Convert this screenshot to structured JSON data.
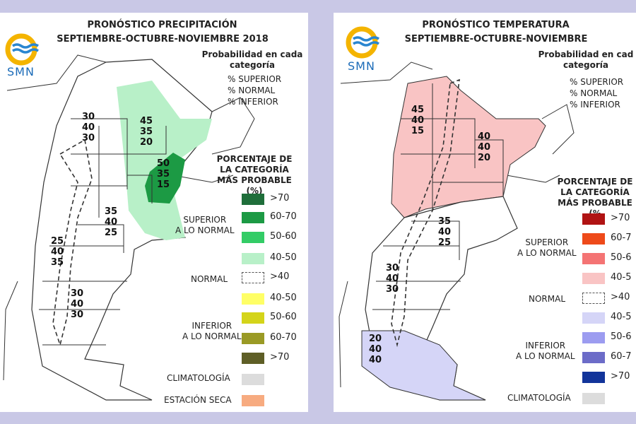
{
  "left_panel": {
    "logo_text": "SMN",
    "title": "PRONÓSTICO PRECIPITACIÓN",
    "subtitle": "SEPTIEMBRE-OCTUBRE-NOVIEMBRE 2018",
    "prob_heading": [
      "Probabilidad en cada",
      "categoría"
    ],
    "prob_items": [
      "% SUPERIOR",
      "% NORMAL",
      "% INFERIOR"
    ],
    "pct_heading": [
      "PORCENTAJE DE",
      "LA CATEGORÍA",
      "MÁS PROBABLE (%)"
    ],
    "group_superior": [
      "SUPERIOR",
      "A LO NORMAL"
    ],
    "group_normal": "NORMAL",
    "group_inferior": [
      "INFERIOR",
      "A LO NORMAL"
    ],
    "climatologia": "CLIMATOLOGÍA",
    "estacion_seca": "ESTACIÓN SECA",
    "legend": [
      {
        "label": ">70",
        "color": "#1f6e3a"
      },
      {
        "label": "60-70",
        "color": "#1c9a44"
      },
      {
        "label": "50-60",
        "color": "#33cc66"
      },
      {
        "label": "40-50",
        "color": "#b8f0c8"
      },
      {
        "label": ">40",
        "color": "dashed"
      },
      {
        "label": "40-50",
        "color": "#ffff66"
      },
      {
        "label": "50-60",
        "color": "#d4d41a"
      },
      {
        "label": "60-70",
        "color": "#9a9a25"
      },
      {
        "label": ">70",
        "color": "#5e5e26"
      },
      {
        "label": "",
        "color": "#dcdcdc"
      },
      {
        "label": "",
        "color": "#f7ab80"
      }
    ],
    "map_labels": [
      {
        "values": [
          "30",
          "40",
          "30"
        ]
      },
      {
        "values": [
          "45",
          "35",
          "20"
        ]
      },
      {
        "values": [
          "50",
          "35",
          "15"
        ]
      },
      {
        "values": [
          "35",
          "40",
          "25"
        ]
      },
      {
        "values": [
          "25",
          "40",
          "35"
        ]
      },
      {
        "values": [
          "30",
          "40",
          "30"
        ]
      }
    ]
  },
  "right_panel": {
    "logo_text": "SMN",
    "title": "PRONÓSTICO TEMPERATURA",
    "subtitle": "SEPTIEMBRE-OCTUBRE-NOVIEMBRE",
    "prob_heading": [
      "Probabilidad en cad",
      "categoría"
    ],
    "prob_items": [
      "% SUPERIOR",
      "% NORMAL",
      "% INFERIOR"
    ],
    "pct_heading": [
      "PORCENTAJE DE",
      "LA CATEGORÍA",
      "MÁS PROBABLE (%"
    ],
    "group_superior": [
      "SUPERIOR",
      "A LO NORMAL"
    ],
    "group_normal": "NORMAL",
    "group_inferior": [
      "INFERIOR",
      "A LO NORMAL"
    ],
    "climatologia": "CLIMATOLOGÍA",
    "legend": [
      {
        "label": ">70",
        "color": "#b01313"
      },
      {
        "label": "60-7",
        "color": "#ee4a1a"
      },
      {
        "label": "50-6",
        "color": "#f47474"
      },
      {
        "label": "40-5",
        "color": "#f9c4c4"
      },
      {
        "label": ">40",
        "color": "dashed"
      },
      {
        "label": "40-5",
        "color": "#d5d5f7"
      },
      {
        "label": "50-6",
        "color": "#9c9cf0"
      },
      {
        "label": "60-7",
        "color": "#6c6cc8"
      },
      {
        "label": ">70",
        "color": "#12349a"
      },
      {
        "label": "",
        "color": "#dcdcdc"
      }
    ],
    "map_labels": [
      {
        "values": [
          "45",
          "40",
          "15"
        ]
      },
      {
        "values": [
          "40",
          "40",
          "20"
        ]
      },
      {
        "values": [
          "35",
          "40",
          "25"
        ]
      },
      {
        "values": [
          "30",
          "40",
          "30"
        ]
      },
      {
        "values": [
          "20",
          "40",
          "40"
        ]
      }
    ]
  }
}
